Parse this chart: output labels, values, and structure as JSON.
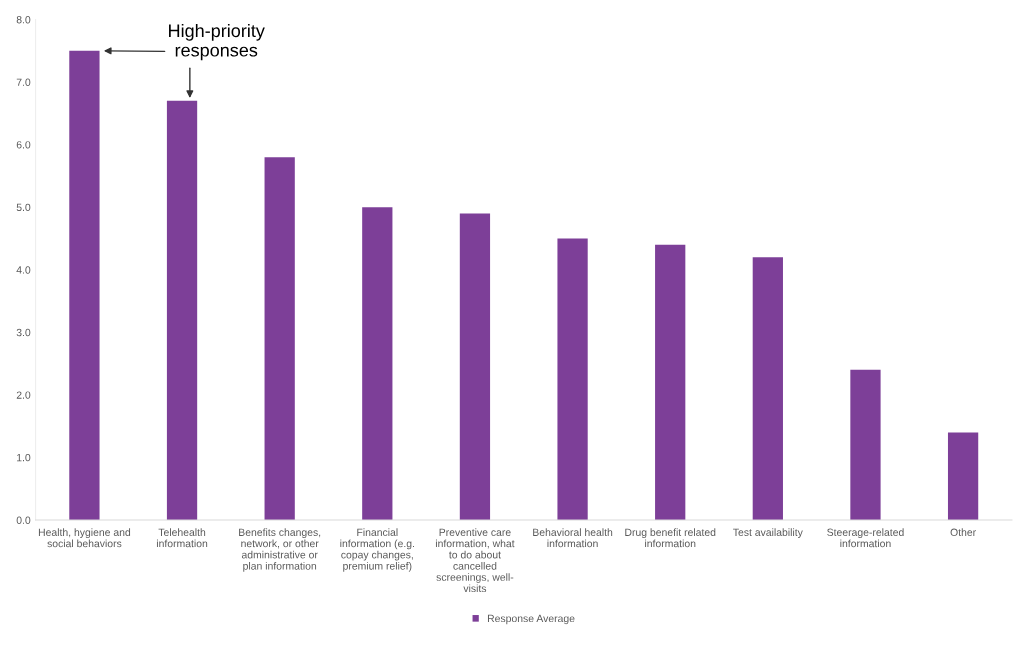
{
  "chart_data": {
    "type": "bar",
    "categories": [
      "Health, hygiene and\nsocial behaviors",
      "Telehealth\ninformation",
      "Benefits changes,\nnetwork, or other\nadministrative or\nplan information",
      "Financial\ninformation (e.g.\ncopay changes,\npremium relief)",
      "Preventive care\ninformation, what\nto do about\ncancelled\nscreenings, well-\nvisits",
      "Behavioral health\ninformation",
      "Drug benefit related\ninformation",
      "Test availability",
      "Steerage-related\ninformation",
      "Other"
    ],
    "series": [
      {
        "name": "Response Average",
        "color": "#7d3f98",
        "values": [
          7.5,
          6.7,
          5.8,
          5.0,
          4.9,
          4.5,
          4.4,
          4.2,
          2.4,
          1.4
        ]
      }
    ],
    "ylim": [
      0,
      8
    ],
    "yticks": [
      {
        "value": 0,
        "label": "0.0"
      },
      {
        "value": 1,
        "label": "1.0"
      },
      {
        "value": 2,
        "label": "2.0"
      },
      {
        "value": 3,
        "label": "3.0"
      },
      {
        "value": 4,
        "label": "4.0"
      },
      {
        "value": 5,
        "label": "5.0"
      },
      {
        "value": 6,
        "label": "6.0"
      },
      {
        "value": 7,
        "label": "7.0"
      },
      {
        "value": 8,
        "label": "8.0"
      }
    ],
    "annotations": [
      "High-priority\nresponses"
    ],
    "grid": false,
    "legend": "bottom"
  }
}
